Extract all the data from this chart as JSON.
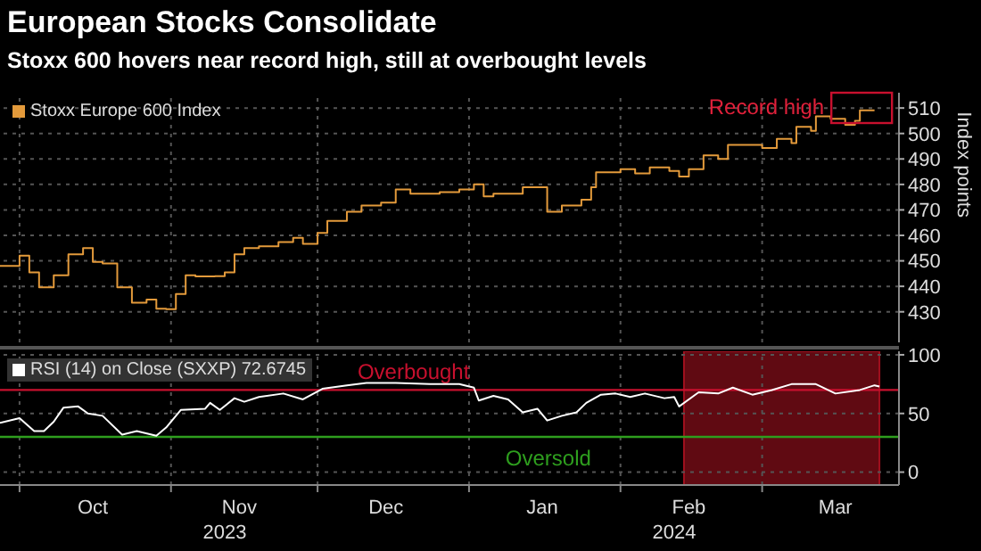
{
  "chart_data": [
    {
      "type": "step",
      "title": "European Stocks Consolidate",
      "subtitle": "Stoxx 600 hovers near record high, still at overbought levels",
      "ylabel": "Index points",
      "legend": "top left",
      "grid": true,
      "tick_labels": "y",
      "xlim": [
        "2023-09-27",
        "2024-03-29"
      ],
      "xticks": [
        {
          "value": "2023-10-01",
          "label": null
        },
        {
          "value": "2023-11-01",
          "label": null
        },
        {
          "value": "2023-12-01",
          "label": null
        },
        {
          "value": "2024-01-01",
          "label": null
        },
        {
          "value": "2024-02-01",
          "label": null
        },
        {
          "value": "2024-03-01",
          "label": null
        }
      ],
      "ylim": [
        418,
        516
      ],
      "yticks": [
        430,
        440,
        450,
        460,
        470,
        480,
        490,
        500,
        510
      ],
      "annotations": [
        {
          "text": "Record high",
          "x": "2024-03-21",
          "y": 509
        }
      ],
      "series": [
        {
          "name": "Stoxx Europe 600 Index",
          "color": "#e39a3b",
          "x": [
            "2023-09-27",
            "2023-10-01",
            "2023-10-03",
            "2023-10-05",
            "2023-10-08",
            "2023-10-11",
            "2023-10-14",
            "2023-10-16",
            "2023-10-18",
            "2023-10-21",
            "2023-10-24",
            "2023-10-27",
            "2023-10-29",
            "2023-10-31",
            "2023-11-02",
            "2023-11-04",
            "2023-11-06",
            "2023-11-10",
            "2023-11-12",
            "2023-11-14",
            "2023-11-16",
            "2023-11-19",
            "2023-11-23",
            "2023-11-26",
            "2023-11-28",
            "2023-12-01",
            "2023-12-03",
            "2023-12-07",
            "2023-12-10",
            "2023-12-14",
            "2023-12-17",
            "2023-12-20",
            "2023-12-26",
            "2023-12-30",
            "2024-01-02",
            "2024-01-04",
            "2024-01-06",
            "2024-01-12",
            "2024-01-17",
            "2024-01-20",
            "2024-01-24",
            "2024-01-26",
            "2024-01-27",
            "2024-02-01",
            "2024-02-04",
            "2024-02-07",
            "2024-02-11",
            "2024-02-13",
            "2024-02-15",
            "2024-02-18",
            "2024-02-21",
            "2024-02-23",
            "2024-02-28",
            "2024-03-01",
            "2024-03-04",
            "2024-03-07",
            "2024-03-08",
            "2024-03-11",
            "2024-03-12",
            "2024-03-15",
            "2024-03-18",
            "2024-03-20",
            "2024-03-21",
            "2024-03-24"
          ],
          "values": [
            448,
            452,
            445.5,
            439.6,
            444.3,
            452.6,
            455,
            449.6,
            449,
            439.6,
            433.6,
            434.8,
            431.2,
            431,
            437,
            444.3,
            443.9,
            444,
            445.5,
            452.6,
            455,
            455.7,
            457.4,
            459,
            456.7,
            461,
            465.7,
            469.3,
            471.7,
            472.9,
            478,
            476.4,
            477,
            478,
            480,
            475.3,
            476.4,
            478.9,
            469.3,
            471.7,
            474,
            478.9,
            484.8,
            486,
            484.3,
            486.7,
            485.3,
            483.1,
            486,
            491.4,
            490,
            495.5,
            495.5,
            494.3,
            497.9,
            496.2,
            502.6,
            501,
            506.7,
            505.8,
            503.4,
            505,
            509.1,
            509.1
          ]
        }
      ]
    },
    {
      "type": "line",
      "legend": "top left",
      "grid": true,
      "xlim": [
        "2023-09-27",
        "2024-03-29"
      ],
      "xticks": [
        {
          "value": "2023-10-01",
          "label": null
        },
        {
          "value": "2023-10-16",
          "label": "Oct"
        },
        {
          "value": "2023-11-01",
          "label": null
        },
        {
          "value": "2023-11-15",
          "label": "Nov"
        },
        {
          "value": "2023-12-01",
          "label": null
        },
        {
          "value": "2023-12-15",
          "label": "Dec"
        },
        {
          "value": "2024-01-01",
          "label": null
        },
        {
          "value": "2024-01-16",
          "label": "Jan"
        },
        {
          "value": "2024-02-01",
          "label": null
        },
        {
          "value": "2024-02-15",
          "label": "Feb"
        },
        {
          "value": "2024-03-01",
          "label": null
        },
        {
          "value": "2024-03-16",
          "label": "Mar"
        }
      ],
      "ylim": [
        -11,
        103
      ],
      "yticks": [
        0,
        50,
        100
      ],
      "ref_lines": [
        {
          "axis": "y",
          "value": 70,
          "label": "Overbought",
          "color": "#c8102e"
        },
        {
          "axis": "y",
          "value": 30,
          "label": "Oversold",
          "color": "#2e9e1e"
        }
      ],
      "bands": [
        {
          "axis": "x",
          "from": "2024-02-14",
          "to": "2024-03-25",
          "color": "#a0101e"
        }
      ],
      "annotations": [
        "2023",
        "2024"
      ],
      "series": [
        {
          "name": "RSI (14)  on Close (SXXP) 72.6745",
          "color": "#ffffff",
          "x": [
            "2023-09-27",
            "2023-10-01",
            "2023-10-04",
            "2023-10-06",
            "2023-10-08",
            "2023-10-10",
            "2023-10-13",
            "2023-10-15",
            "2023-10-18",
            "2023-10-22",
            "2023-10-25",
            "2023-10-29",
            "2023-10-31",
            "2023-11-03",
            "2023-11-08",
            "2023-11-09",
            "2023-11-11",
            "2023-11-14",
            "2023-11-16",
            "2023-11-19",
            "2023-11-24",
            "2023-11-28",
            "2023-12-02",
            "2023-12-07",
            "2023-12-11",
            "2023-12-17",
            "2023-12-24",
            "2023-12-30",
            "2024-01-02",
            "2024-01-03",
            "2024-01-06",
            "2024-01-09",
            "2024-01-12",
            "2024-01-15",
            "2024-01-17",
            "2024-01-20",
            "2024-01-23",
            "2024-01-25",
            "2024-01-28",
            "2024-01-31",
            "2024-02-03",
            "2024-02-06",
            "2024-02-10",
            "2024-02-12",
            "2024-02-13",
            "2024-02-17",
            "2024-02-21",
            "2024-02-24",
            "2024-02-28",
            "2024-03-03",
            "2024-03-07",
            "2024-03-12",
            "2024-03-16",
            "2024-03-21",
            "2024-03-24",
            "2024-03-25"
          ],
          "values": [
            42,
            46,
            35,
            35,
            43,
            55,
            56,
            50,
            48,
            32,
            35,
            31,
            38,
            53,
            54,
            59,
            53,
            63,
            60,
            64,
            67,
            62,
            71,
            74,
            76,
            76,
            75,
            75,
            72,
            61,
            65,
            62,
            51,
            54,
            44,
            48,
            51,
            59,
            66,
            67,
            64,
            67,
            63,
            64,
            56,
            68,
            67,
            72,
            66,
            70,
            75,
            75,
            67,
            70,
            74,
            73
          ]
        }
      ]
    }
  ]
}
